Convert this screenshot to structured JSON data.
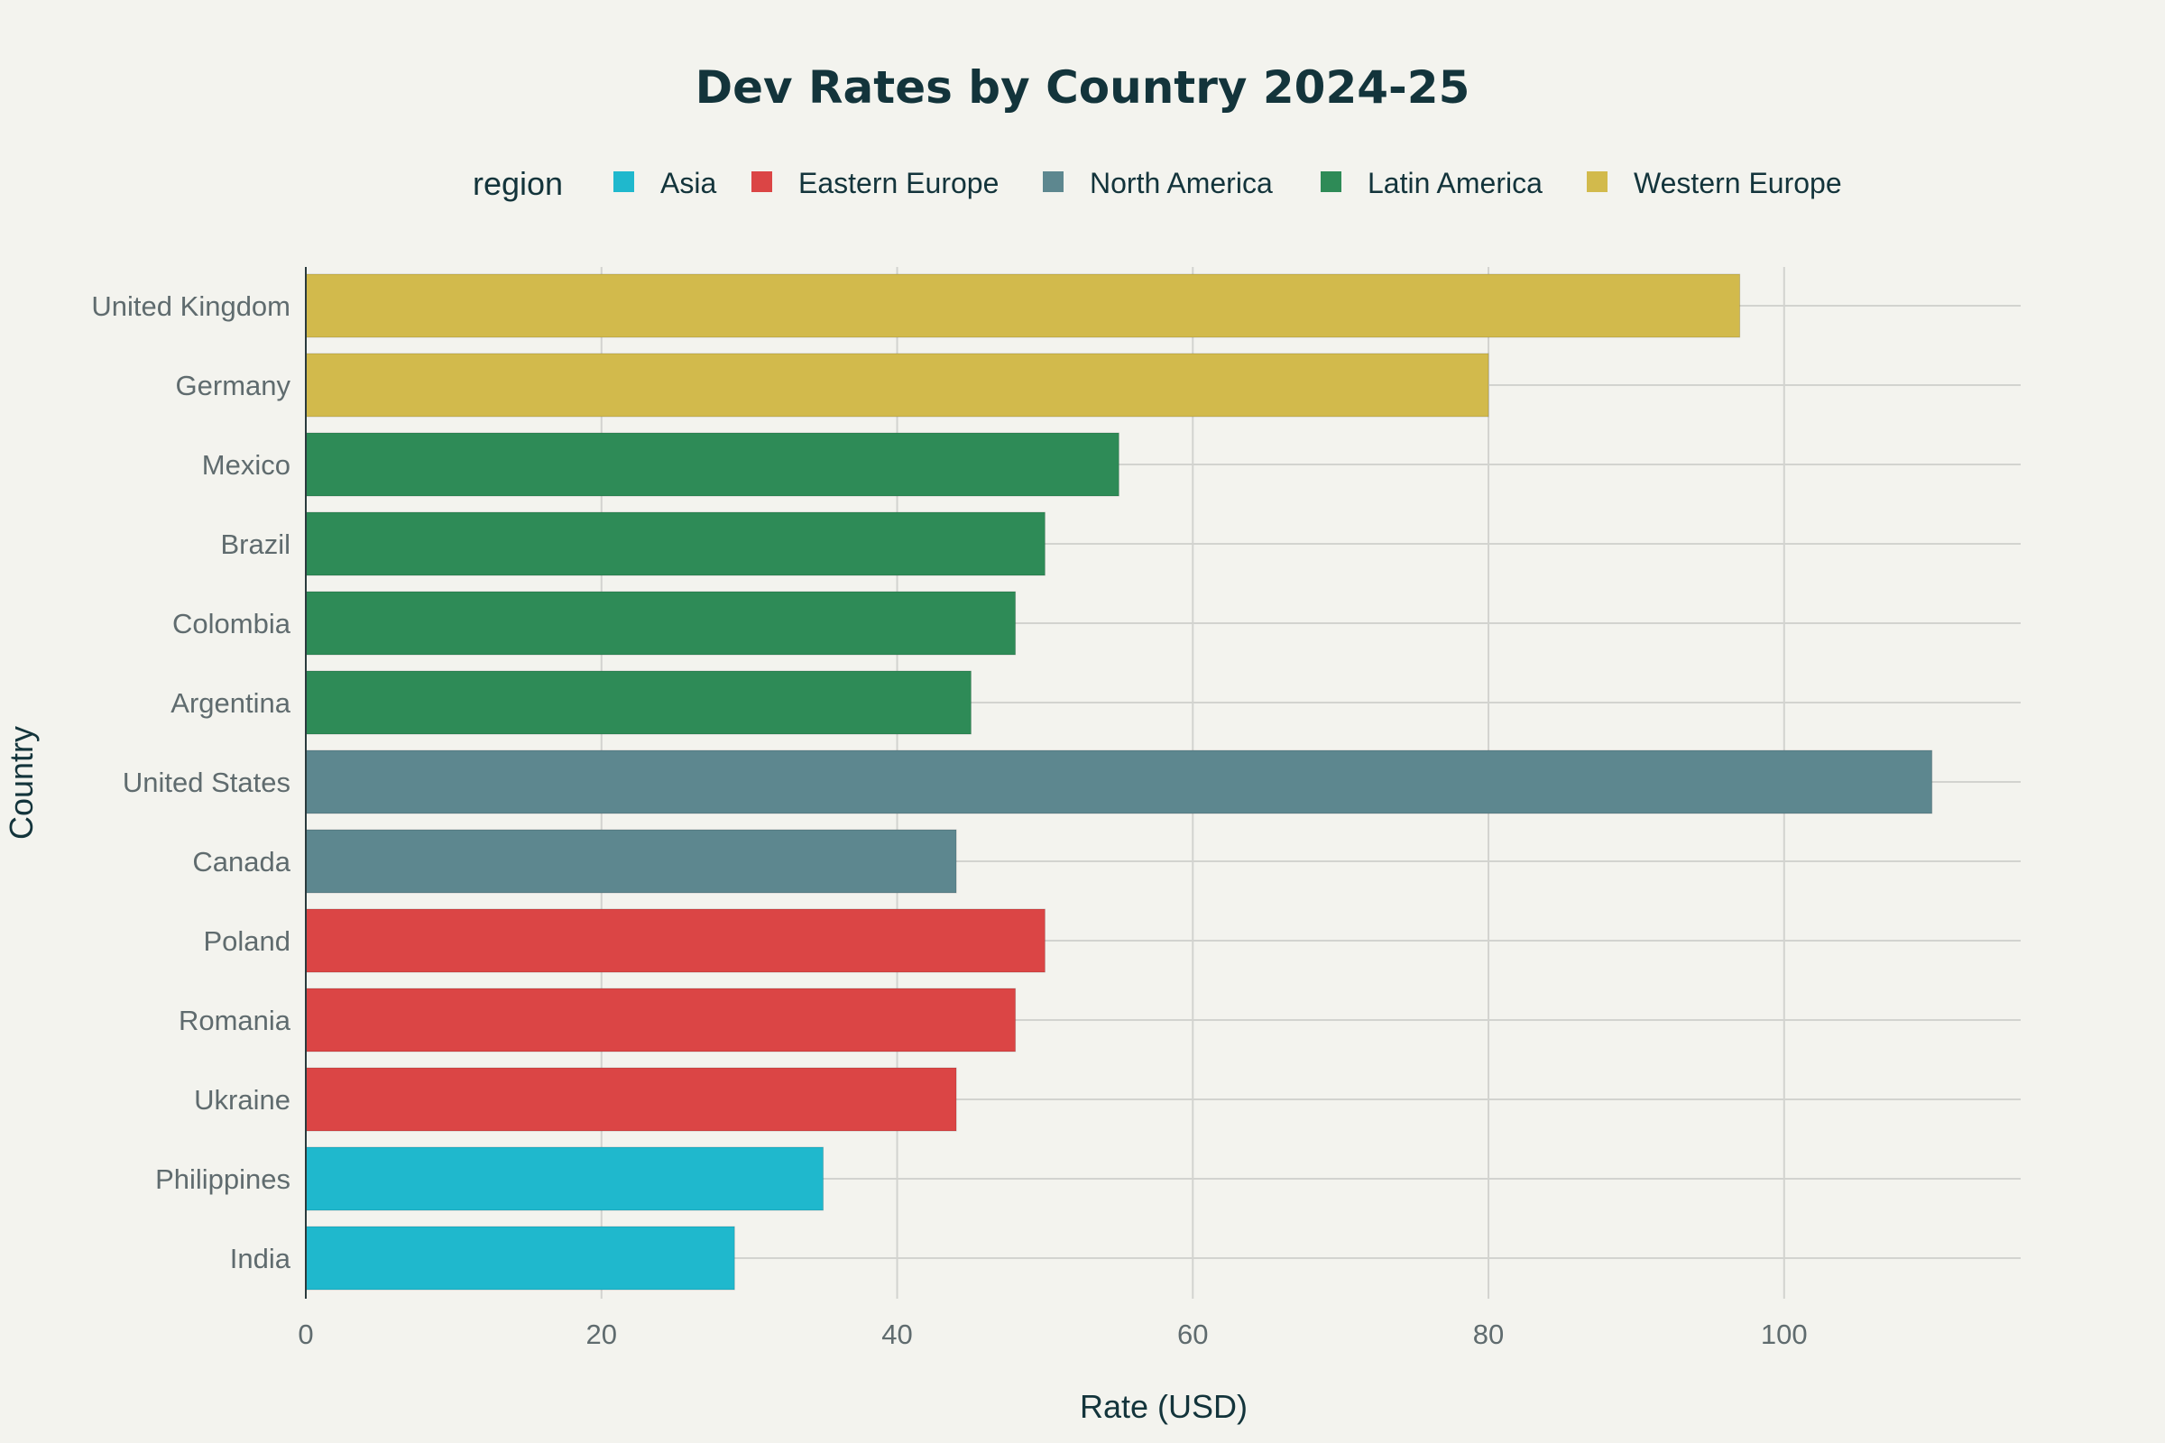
{
  "chart_data": {
    "type": "bar",
    "orientation": "horizontal",
    "title": "Dev Rates by Country 2024-25",
    "xlabel": "Rate (USD)",
    "ylabel": "Country",
    "xlim": [
      0,
      116
    ],
    "xticks": [
      0,
      20,
      40,
      60,
      80,
      100
    ],
    "grid": true,
    "legend": {
      "title": "region",
      "placement": "top-center",
      "entries": [
        {
          "name": "Asia",
          "color": "#1fb8cd"
        },
        {
          "name": "Eastern Europe",
          "color": "#db4545"
        },
        {
          "name": "North America",
          "color": "#5d878f"
        },
        {
          "name": "Latin America",
          "color": "#2e8b57"
        },
        {
          "name": "Western Europe",
          "color": "#d2ba4c"
        }
      ]
    },
    "categories": [
      "United Kingdom",
      "Germany",
      "Mexico",
      "Brazil",
      "Colombia",
      "Argentina",
      "United States",
      "Canada",
      "Poland",
      "Romania",
      "Ukraine",
      "Philippines",
      "India"
    ],
    "values": [
      97,
      80,
      55,
      50,
      48,
      45,
      110,
      44,
      50,
      48,
      44,
      35,
      29
    ],
    "regions": [
      "Western Europe",
      "Western Europe",
      "Latin America",
      "Latin America",
      "Latin America",
      "Latin America",
      "North America",
      "North America",
      "Eastern Europe",
      "Eastern Europe",
      "Eastern Europe",
      "Asia",
      "Asia"
    ]
  }
}
